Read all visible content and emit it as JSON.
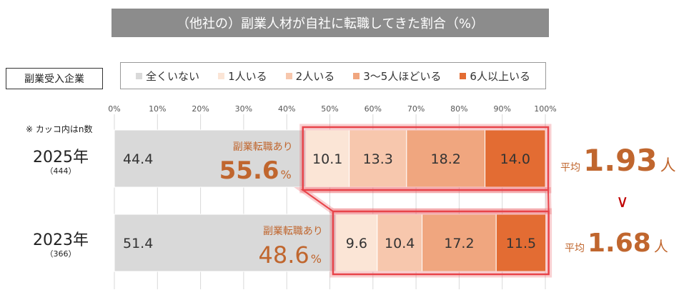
{
  "title": "（他社の）副業人材が自社に転職してきた割合（%）",
  "segment_label": "副業受入企業",
  "note": "※ カッコ内はn数",
  "comparison_symbol": "∨",
  "colors": {
    "bar_text": "#333333",
    "highlight": "#e8444a",
    "accent_text": "#c0662e"
  },
  "chart_data": {
    "type": "bar",
    "orientation": "horizontal",
    "stacked": true,
    "title": "（他社の）副業人材が自社に転職してきた割合（%）",
    "xlabel": "",
    "ylabel": "",
    "xlim": [
      0,
      100
    ],
    "x_ticks": [
      "0%",
      "10%",
      "20%",
      "30%",
      "40%",
      "50%",
      "60%",
      "70%",
      "80%",
      "90%",
      "100%"
    ],
    "grid": true,
    "legend_position": "top",
    "categories": [
      "2025年",
      "2023年"
    ],
    "n_labels": [
      "（444）",
      "（366）"
    ],
    "series": [
      {
        "name": "全くいない",
        "values": [
          44.4,
          51.4
        ],
        "color": "#d9d9d9"
      },
      {
        "name": "1人いる",
        "values": [
          10.1,
          9.6
        ],
        "color": "#fbe5d6"
      },
      {
        "name": "2人いる",
        "values": [
          13.3,
          10.4
        ],
        "color": "#f7c7ad"
      },
      {
        "name": "3～5人ほどいる",
        "values": [
          18.2,
          17.2
        ],
        "color": "#f0a67f"
      },
      {
        "name": "6人以上いる",
        "values": [
          14.0,
          11.5
        ],
        "color": "#e36c33"
      }
    ],
    "annotations": [
      {
        "label": "副業転職あり",
        "value": "55.6",
        "unit": "%"
      },
      {
        "label": "副業転職あり",
        "value": "48.6",
        "unit": "%"
      }
    ],
    "averages": [
      {
        "prefix": "平均",
        "value": "1.93",
        "unit": "人"
      },
      {
        "prefix": "平均",
        "value": "1.68",
        "unit": "人"
      }
    ]
  }
}
